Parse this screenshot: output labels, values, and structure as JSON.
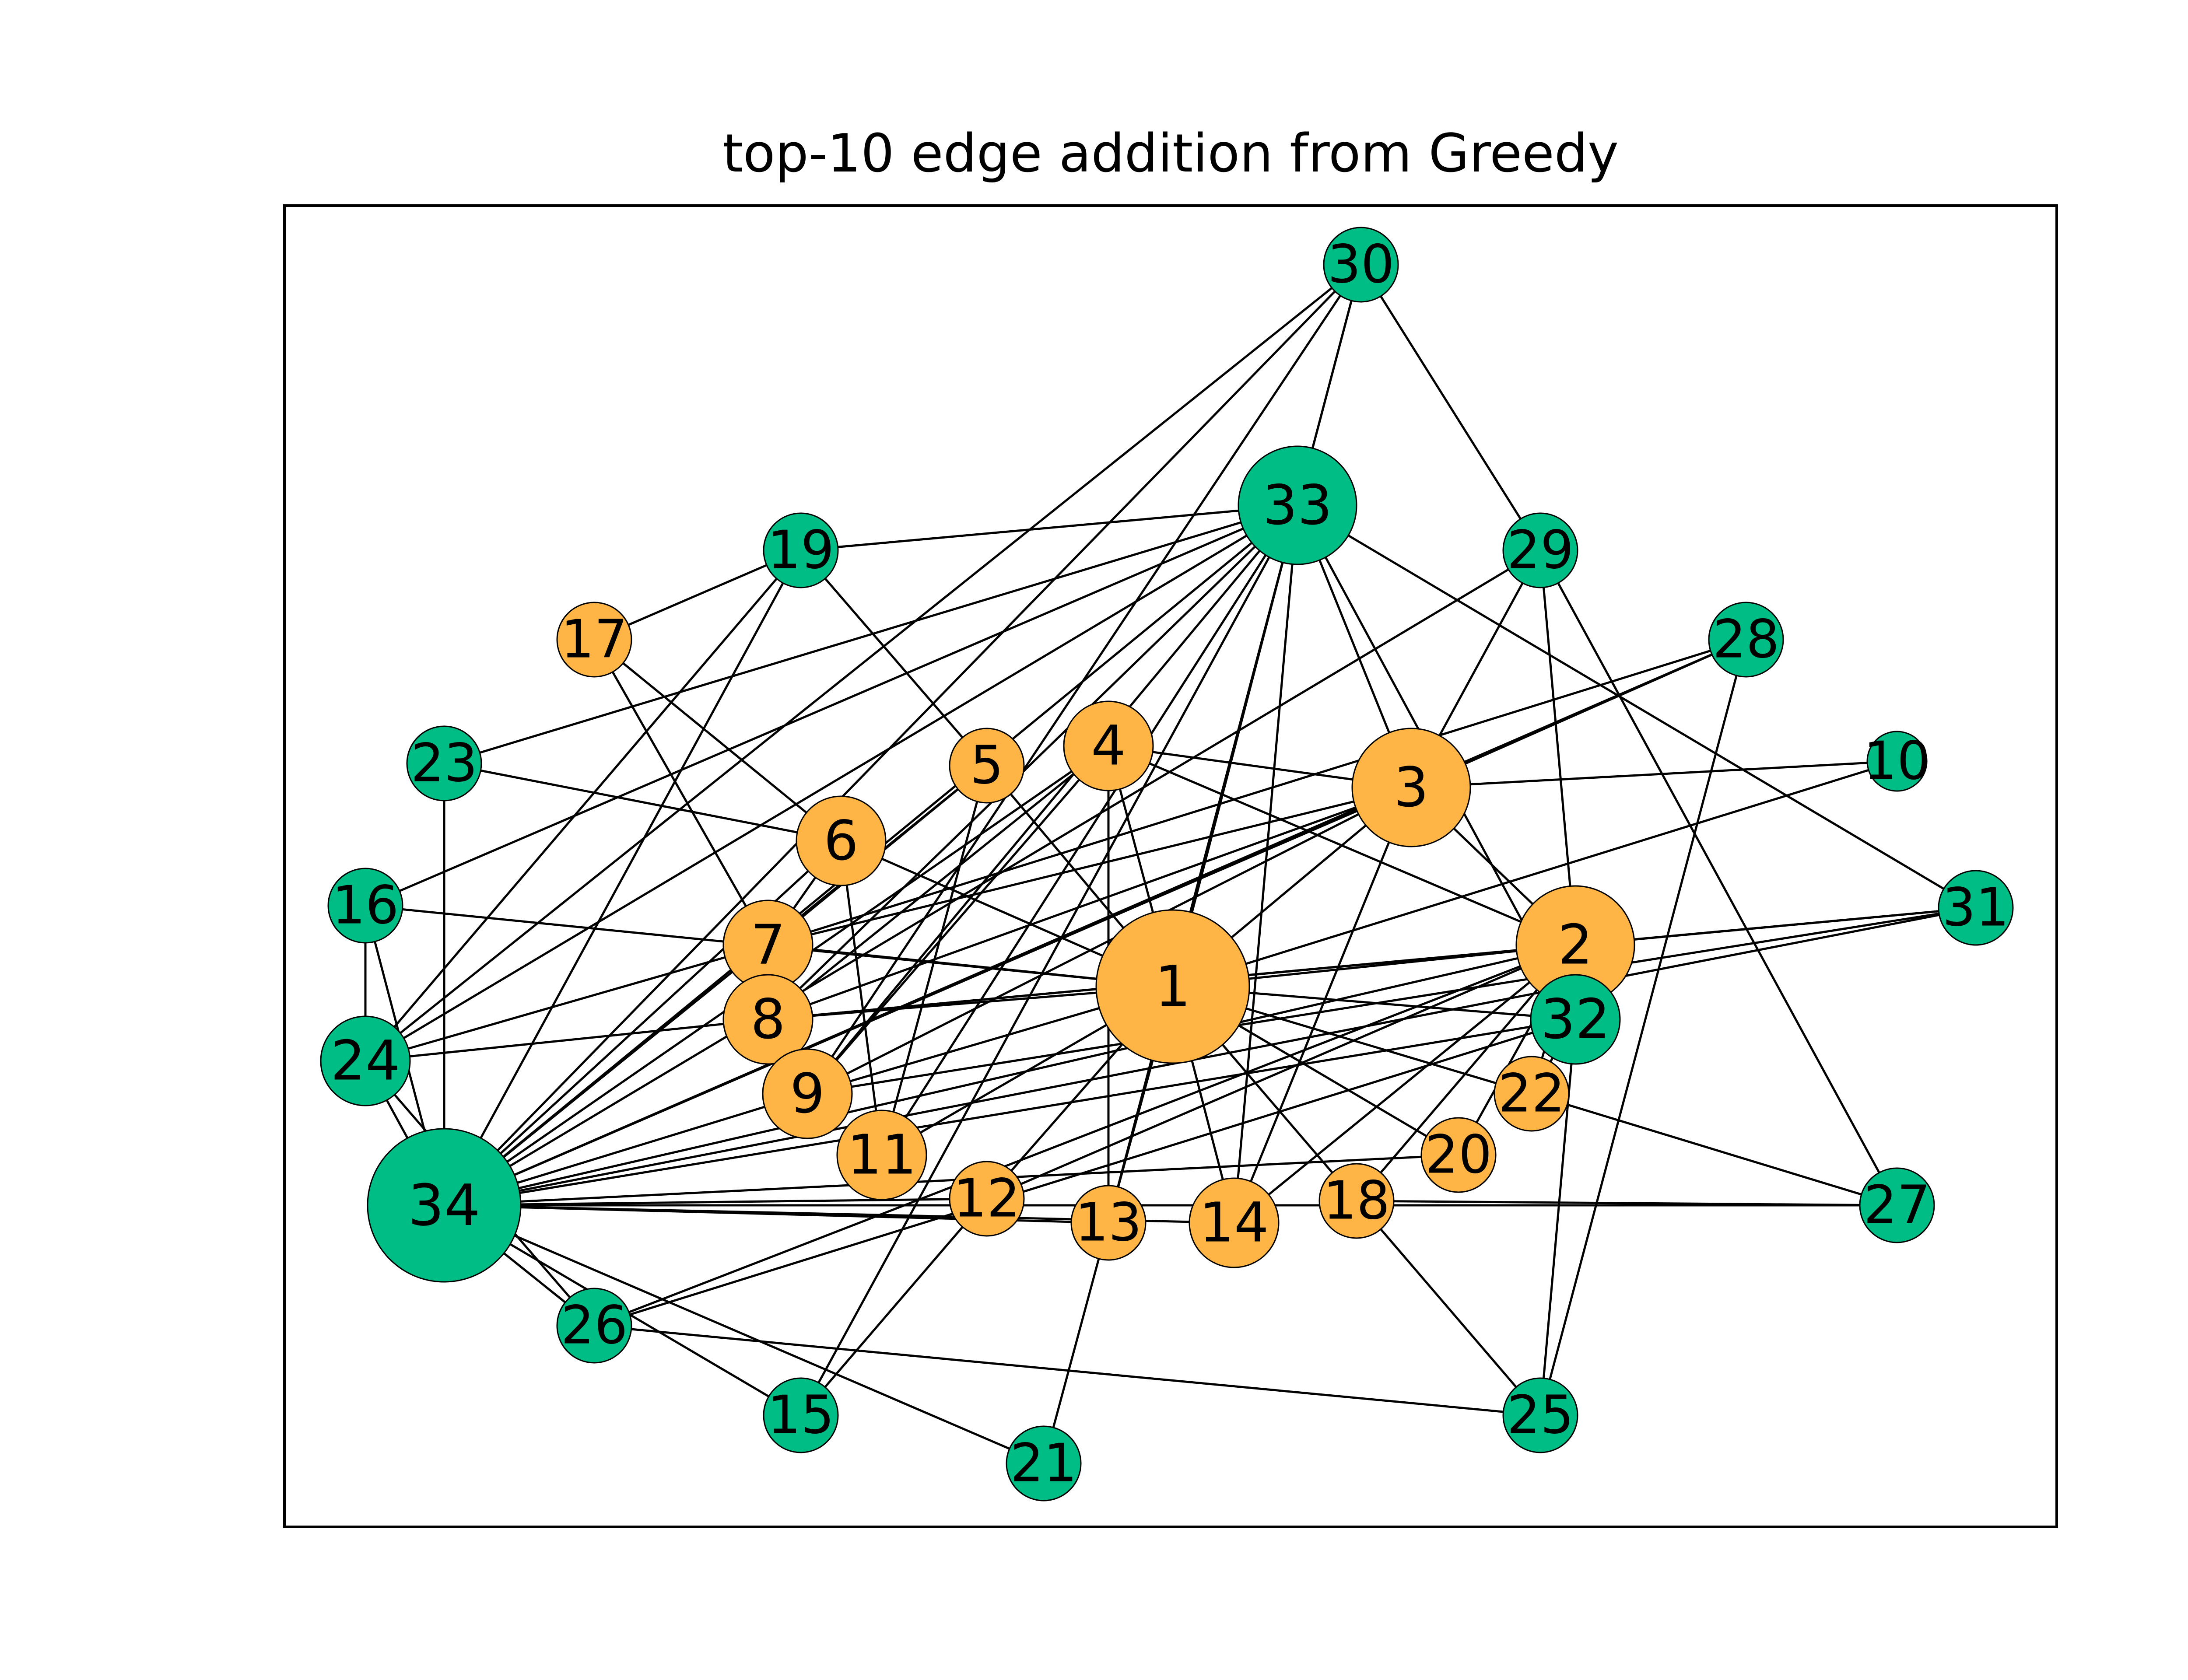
{
  "figure": {
    "title": "top-10 edge addition from Greedy"
  },
  "colors": {
    "group_a": "#FFB545",
    "group_b": "#00BD85",
    "edge": "#000000",
    "background": "#ffffff"
  },
  "graph": {
    "nodes": [
      {
        "id": "1",
        "label": "1",
        "group": "a",
        "size": "xlarge"
      },
      {
        "id": "2",
        "label": "2",
        "group": "a",
        "size": "large"
      },
      {
        "id": "3",
        "label": "3",
        "group": "a",
        "size": "large"
      },
      {
        "id": "4",
        "label": "4",
        "group": "a",
        "size": "medium"
      },
      {
        "id": "5",
        "label": "5",
        "group": "a",
        "size": "small"
      },
      {
        "id": "6",
        "label": "6",
        "group": "a",
        "size": "medium"
      },
      {
        "id": "7",
        "label": "7",
        "group": "a",
        "size": "medium"
      },
      {
        "id": "8",
        "label": "8",
        "group": "a",
        "size": "medium"
      },
      {
        "id": "9",
        "label": "9",
        "group": "a",
        "size": "medium"
      },
      {
        "id": "10",
        "label": "10",
        "group": "b",
        "size": "tiny"
      },
      {
        "id": "11",
        "label": "11",
        "group": "a",
        "size": "medium"
      },
      {
        "id": "12",
        "label": "12",
        "group": "a",
        "size": "small"
      },
      {
        "id": "13",
        "label": "13",
        "group": "a",
        "size": "small"
      },
      {
        "id": "14",
        "label": "14",
        "group": "a",
        "size": "medium"
      },
      {
        "id": "15",
        "label": "15",
        "group": "b",
        "size": "small"
      },
      {
        "id": "16",
        "label": "16",
        "group": "b",
        "size": "small"
      },
      {
        "id": "17",
        "label": "17",
        "group": "a",
        "size": "small"
      },
      {
        "id": "18",
        "label": "18",
        "group": "a",
        "size": "small"
      },
      {
        "id": "19",
        "label": "19",
        "group": "b",
        "size": "small"
      },
      {
        "id": "20",
        "label": "20",
        "group": "a",
        "size": "small"
      },
      {
        "id": "21",
        "label": "21",
        "group": "b",
        "size": "small"
      },
      {
        "id": "22",
        "label": "22",
        "group": "a",
        "size": "small"
      },
      {
        "id": "23",
        "label": "23",
        "group": "b",
        "size": "small"
      },
      {
        "id": "24",
        "label": "24",
        "group": "b",
        "size": "medium"
      },
      {
        "id": "25",
        "label": "25",
        "group": "b",
        "size": "small"
      },
      {
        "id": "26",
        "label": "26",
        "group": "b",
        "size": "small"
      },
      {
        "id": "27",
        "label": "27",
        "group": "b",
        "size": "small"
      },
      {
        "id": "28",
        "label": "28",
        "group": "b",
        "size": "small"
      },
      {
        "id": "29",
        "label": "29",
        "group": "b",
        "size": "small"
      },
      {
        "id": "30",
        "label": "30",
        "group": "b",
        "size": "small"
      },
      {
        "id": "31",
        "label": "31",
        "group": "b",
        "size": "small"
      },
      {
        "id": "32",
        "label": "32",
        "group": "b",
        "size": "medium"
      },
      {
        "id": "33",
        "label": "33",
        "group": "b",
        "size": "large"
      },
      {
        "id": "34",
        "label": "34",
        "group": "b",
        "size": "xlarge"
      }
    ],
    "edges": [
      [
        "1",
        "2"
      ],
      [
        "1",
        "3"
      ],
      [
        "1",
        "4"
      ],
      [
        "1",
        "5"
      ],
      [
        "1",
        "6"
      ],
      [
        "1",
        "7"
      ],
      [
        "1",
        "8"
      ],
      [
        "1",
        "9"
      ],
      [
        "1",
        "11"
      ],
      [
        "1",
        "12"
      ],
      [
        "1",
        "13"
      ],
      [
        "1",
        "14"
      ],
      [
        "1",
        "16"
      ],
      [
        "1",
        "18"
      ],
      [
        "1",
        "20"
      ],
      [
        "1",
        "22"
      ],
      [
        "1",
        "32"
      ],
      [
        "1",
        "33"
      ],
      [
        "1",
        "10"
      ],
      [
        "2",
        "3"
      ],
      [
        "2",
        "4"
      ],
      [
        "2",
        "8"
      ],
      [
        "2",
        "14"
      ],
      [
        "2",
        "18"
      ],
      [
        "2",
        "20"
      ],
      [
        "2",
        "22"
      ],
      [
        "2",
        "29"
      ],
      [
        "2",
        "31"
      ],
      [
        "2",
        "34"
      ],
      [
        "2",
        "12"
      ],
      [
        "2",
        "26"
      ],
      [
        "3",
        "4"
      ],
      [
        "3",
        "8"
      ],
      [
        "3",
        "9"
      ],
      [
        "3",
        "10"
      ],
      [
        "3",
        "14"
      ],
      [
        "3",
        "28"
      ],
      [
        "3",
        "29"
      ],
      [
        "3",
        "33"
      ],
      [
        "3",
        "7"
      ],
      [
        "3",
        "34"
      ],
      [
        "4",
        "8"
      ],
      [
        "4",
        "13"
      ],
      [
        "4",
        "34"
      ],
      [
        "4",
        "9"
      ],
      [
        "5",
        "7"
      ],
      [
        "5",
        "11"
      ],
      [
        "5",
        "19"
      ],
      [
        "5",
        "34"
      ],
      [
        "6",
        "7"
      ],
      [
        "6",
        "11"
      ],
      [
        "6",
        "17"
      ],
      [
        "6",
        "23"
      ],
      [
        "6",
        "34"
      ],
      [
        "7",
        "17"
      ],
      [
        "7",
        "24"
      ],
      [
        "7",
        "28"
      ],
      [
        "8",
        "24"
      ],
      [
        "8",
        "31"
      ],
      [
        "8",
        "33"
      ],
      [
        "9",
        "31"
      ],
      [
        "9",
        "33"
      ],
      [
        "9",
        "30"
      ],
      [
        "9",
        "34"
      ],
      [
        "11",
        "33"
      ],
      [
        "12",
        "15"
      ],
      [
        "12",
        "34"
      ],
      [
        "13",
        "21"
      ],
      [
        "13",
        "30"
      ],
      [
        "13",
        "34"
      ],
      [
        "14",
        "34"
      ],
      [
        "14",
        "33"
      ],
      [
        "15",
        "34"
      ],
      [
        "15",
        "33"
      ],
      [
        "16",
        "34"
      ],
      [
        "16",
        "24"
      ],
      [
        "16",
        "33"
      ],
      [
        "18",
        "25"
      ],
      [
        "18",
        "27"
      ],
      [
        "19",
        "24"
      ],
      [
        "19",
        "33"
      ],
      [
        "19",
        "34"
      ],
      [
        "19",
        "17"
      ],
      [
        "20",
        "34"
      ],
      [
        "21",
        "34"
      ],
      [
        "22",
        "27"
      ],
      [
        "22",
        "32"
      ],
      [
        "23",
        "33"
      ],
      [
        "23",
        "34"
      ],
      [
        "24",
        "26"
      ],
      [
        "24",
        "30"
      ],
      [
        "24",
        "34"
      ],
      [
        "24",
        "33"
      ],
      [
        "25",
        "26"
      ],
      [
        "25",
        "28"
      ],
      [
        "25",
        "32"
      ],
      [
        "26",
        "34"
      ],
      [
        "26",
        "32"
      ],
      [
        "27",
        "29"
      ],
      [
        "27",
        "34"
      ],
      [
        "28",
        "34"
      ],
      [
        "29",
        "30"
      ],
      [
        "29",
        "34"
      ],
      [
        "30",
        "33"
      ],
      [
        "30",
        "34"
      ],
      [
        "31",
        "33"
      ],
      [
        "31",
        "34"
      ],
      [
        "32",
        "33"
      ],
      [
        "32",
        "34"
      ],
      [
        "33",
        "34"
      ]
    ]
  }
}
